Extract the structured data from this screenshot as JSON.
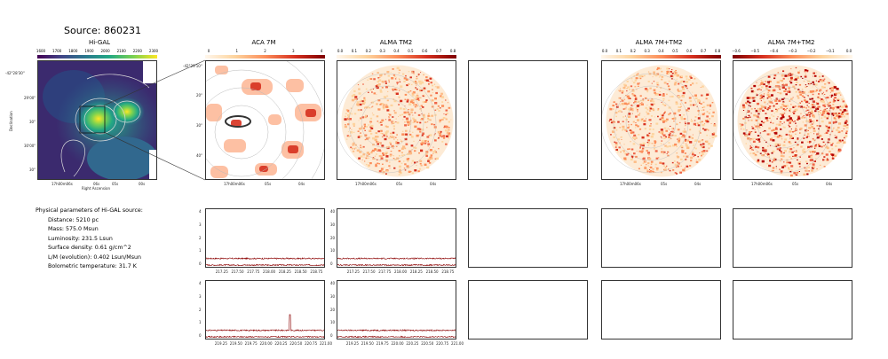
{
  "source_title": "Source: 860231",
  "panel_titles": [
    "Hi-GAL",
    "ACA 7M",
    "ALMA TM2",
    "ALMA 7M+TM2",
    "ALMA 7M+TM2"
  ],
  "colorbars": {
    "higal": [
      "1600",
      "1700",
      "1800",
      "1900",
      "2000",
      "2100",
      "2200",
      "2300"
    ],
    "aca": [
      "0",
      "1",
      "2",
      "3",
      "4"
    ],
    "tm2": [
      "0.0",
      "0.1",
      "0.2",
      "0.3",
      "0.4",
      "0.5",
      "0.6",
      "0.7",
      "0.8"
    ],
    "combo1": [
      "0.0",
      "0.1",
      "0.2",
      "0.3",
      "0.4",
      "0.5",
      "0.6",
      "0.7",
      "0.8"
    ],
    "combo2": [
      "−0.6",
      "−0.5",
      "−0.4",
      "−0.3",
      "−0.2",
      "−0.1",
      "0.0"
    ]
  },
  "higal_axes": {
    "ylabel": "Declination",
    "xlabel": "Right Ascension",
    "yticks": [
      "-42°28'30\"",
      "29'00\"",
      "30\"",
      "30'00\"",
      "30\""
    ],
    "xticks": [
      "17h00m06s",
      "06s",
      "05s",
      "00s"
    ]
  },
  "aca_axes": {
    "yticks": [
      "-42°29'10\"",
      "20\"",
      "30\"",
      "40\""
    ],
    "xticks": [
      "17h00m06s",
      "05s",
      "04s"
    ]
  },
  "tm2_axes": {
    "xticks": [
      "17h00m06s",
      "05s",
      "04s"
    ]
  },
  "combo1_axes": {
    "xticks": [
      "17h00m06s",
      "05s",
      "04s"
    ]
  },
  "combo2_axes": {
    "xticks": [
      "17h00m06s",
      "05s",
      "04s"
    ]
  },
  "params": {
    "heading": "Physical parameters of Hi-GAL source:",
    "lines": [
      "Distance: 5210 pc",
      "Mass: 575.0 Msun",
      "Luminosity: 231.5 Lsun",
      "Surface density: 0.61 g/cm^2",
      "L/M (evolution): 0.402 Lsun/Msun",
      "Bolometric temperature: 31.7 K"
    ]
  },
  "chart_data": [
    {
      "type": "line",
      "panel": "ACA spectrum row 1",
      "x": [
        217.25,
        217.5,
        217.75,
        218.0,
        218.25,
        218.5,
        218.75
      ],
      "xticks": [
        "217.25",
        "217.50",
        "217.75",
        "218.00",
        "218.25",
        "218.50",
        "218.75"
      ],
      "yticks": [
        "0",
        "1",
        "2",
        "3",
        "4"
      ],
      "ylim": [
        0,
        4
      ],
      "xlim": [
        217.0,
        218.9
      ],
      "series_levels": [
        0.5,
        0.0
      ]
    },
    {
      "type": "line",
      "panel": "TM2 spectrum row 1",
      "x": [
        217.25,
        217.5,
        217.75,
        218.0,
        218.25,
        218.5,
        218.75
      ],
      "xticks": [
        "217.25",
        "217.50",
        "217.75",
        "218.00",
        "218.25",
        "218.50",
        "218.75"
      ],
      "yticks": [
        "0",
        "10",
        "20",
        "30",
        "40"
      ],
      "ylim": [
        0,
        40
      ],
      "xlim": [
        217.0,
        218.9
      ],
      "series_levels": [
        5,
        0
      ]
    },
    {
      "type": "line",
      "panel": "ACA spectrum row 2",
      "x": [
        219.25,
        219.5,
        219.75,
        220.0,
        220.25,
        220.5,
        220.75,
        221.0
      ],
      "xticks": [
        "219.25",
        "219.50",
        "219.75",
        "220.00",
        "220.25",
        "220.50",
        "220.75",
        "221.00"
      ],
      "yticks": [
        "0",
        "1",
        "2",
        "3",
        "4"
      ],
      "ylim": [
        0,
        4
      ],
      "xlim": [
        219.0,
        221.0
      ],
      "series_levels": [
        0.5,
        0.0
      ],
      "peak": {
        "x": 220.4,
        "y": 1.7
      }
    },
    {
      "type": "line",
      "panel": "TM2 spectrum row 2",
      "x": [
        219.25,
        219.5,
        219.75,
        220.0,
        220.25,
        220.5,
        220.75,
        221.0
      ],
      "xticks": [
        "219.25",
        "219.50",
        "219.75",
        "220.00",
        "220.25",
        "220.50",
        "220.75",
        "221.00"
      ],
      "yticks": [
        "0",
        "10",
        "20",
        "30",
        "40"
      ],
      "ylim": [
        0,
        40
      ],
      "xlim": [
        219.0,
        221.0
      ],
      "series_levels": [
        5,
        0
      ]
    }
  ]
}
